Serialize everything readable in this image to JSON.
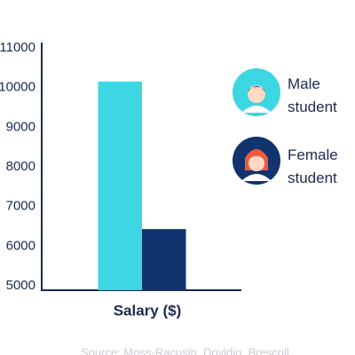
{
  "chart_data": {
    "type": "bar",
    "categories": [
      "Salary ($)"
    ],
    "series": [
      {
        "name": "Male student",
        "color": "#3dd6e3",
        "values": [
          10150
        ]
      },
      {
        "name": "Female student",
        "color": "#11336e",
        "values": [
          6430
        ]
      }
    ],
    "ylim": [
      5000,
      11000
    ],
    "yticks": [
      5000,
      6000,
      7000,
      8000,
      9000,
      10000,
      11000
    ],
    "legend": "right",
    "source": "Source: Moss-Racusin, Dovidio, Brescoll"
  }
}
